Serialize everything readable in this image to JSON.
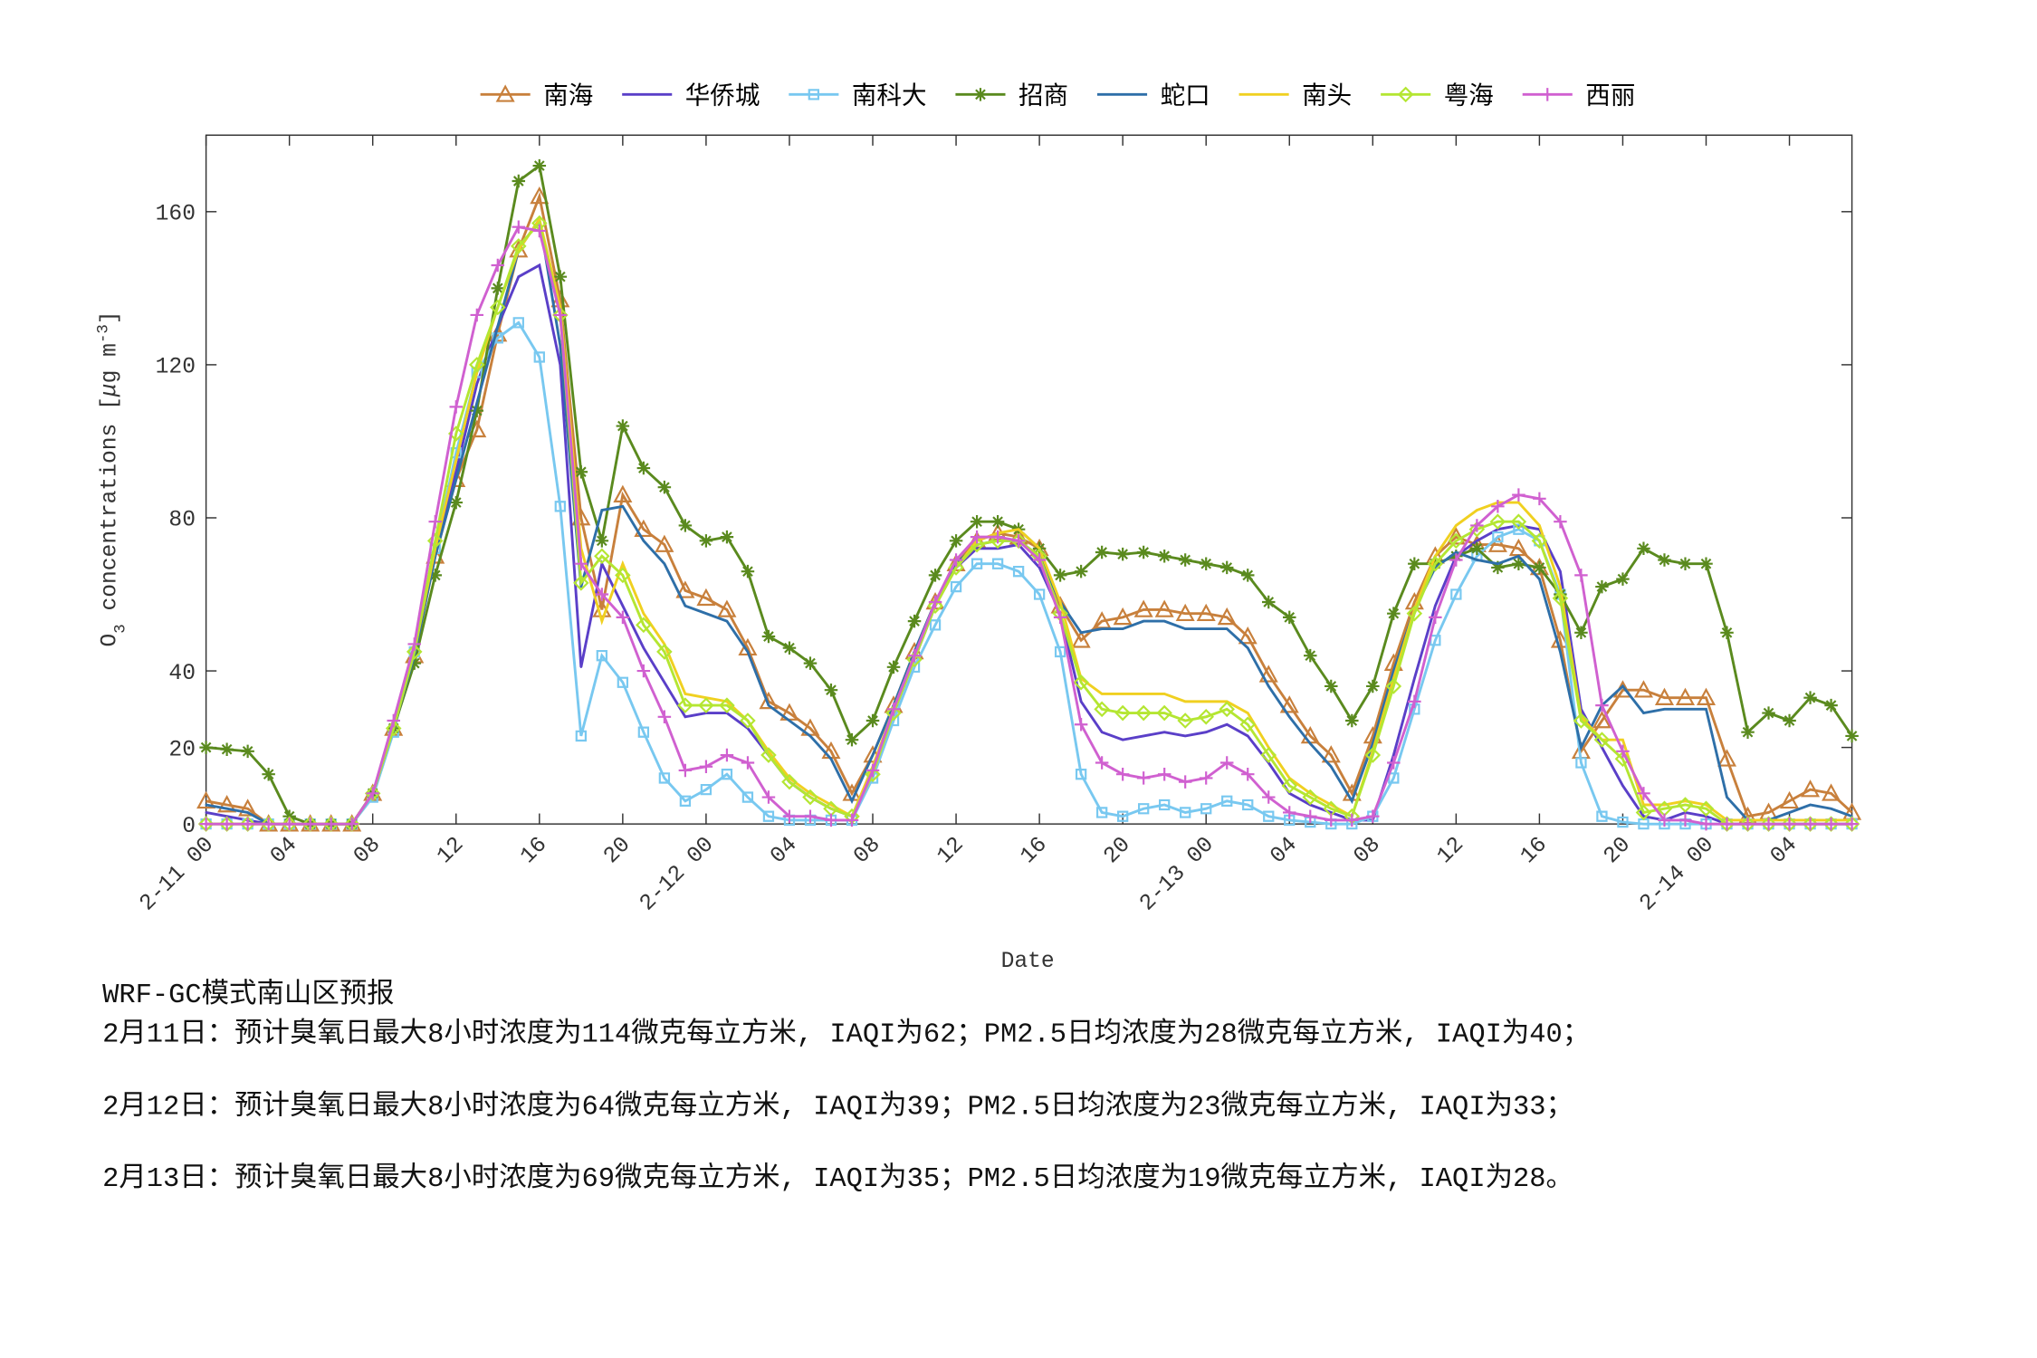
{
  "chart_data": {
    "type": "line",
    "categories": [
      "2-11 00",
      null,
      null,
      null,
      "04",
      null,
      null,
      null,
      "08",
      null,
      null,
      null,
      "12",
      null,
      null,
      null,
      "16",
      null,
      null,
      null,
      "20",
      null,
      null,
      null,
      "2-12 00",
      null,
      null,
      null,
      "04",
      null,
      null,
      null,
      "08",
      null,
      null,
      null,
      "12",
      null,
      null,
      null,
      "16",
      null,
      null,
      null,
      "20",
      null,
      null,
      null,
      "2-13 00",
      null,
      null,
      null,
      "04",
      null,
      null,
      null,
      "08",
      null,
      null,
      null,
      "12",
      null,
      null,
      null,
      "16",
      null,
      null,
      null,
      "20",
      null,
      null,
      null,
      "2-14 00",
      null,
      null,
      null,
      "04",
      null,
      null,
      null
    ],
    "xlabel": "Date",
    "ylabel": [
      "O",
      "3",
      " concentrations [",
      "μ",
      "g m",
      "-3",
      "]"
    ],
    "ylim": [
      0,
      180
    ],
    "yticks": [
      0,
      20,
      40,
      80,
      120,
      160
    ],
    "legend": "top",
    "series": [
      {
        "name": "南海",
        "color": "#c8803c",
        "marker": "triangle",
        "values": [
          6,
          5,
          4,
          0,
          0,
          0,
          0,
          0,
          8,
          25,
          44,
          70,
          90,
          103,
          128,
          150,
          164,
          137,
          80,
          56,
          86,
          77,
          73,
          61,
          59,
          56,
          46,
          32,
          29,
          25,
          19,
          8,
          18,
          31,
          45,
          58,
          68,
          74,
          76,
          75,
          72,
          57,
          48,
          53,
          54,
          56,
          56,
          55,
          55,
          54,
          49,
          39,
          31,
          23,
          18,
          8,
          23,
          42,
          58,
          70,
          75,
          73,
          73,
          72,
          67,
          48,
          19,
          27,
          35,
          35,
          33,
          33,
          33,
          17,
          2,
          3,
          6,
          9,
          8,
          3
        ]
      },
      {
        "name": "华侨城",
        "color": "#5a3fc8",
        "marker": "none",
        "values": [
          3,
          2,
          1,
          0,
          0,
          0,
          0,
          0,
          8,
          25,
          45,
          70,
          92,
          115,
          130,
          143,
          146,
          120,
          41,
          68,
          57,
          46,
          37,
          28,
          29,
          29,
          25,
          18,
          11,
          7,
          4,
          2,
          13,
          29,
          43,
          57,
          67,
          72,
          72,
          73,
          67,
          55,
          32,
          24,
          22,
          23,
          24,
          23,
          24,
          26,
          23,
          16,
          8,
          5,
          3,
          1,
          1,
          18,
          38,
          57,
          70,
          74,
          77,
          78,
          77,
          66,
          30,
          20,
          10,
          2,
          1,
          3,
          2,
          0,
          0,
          0,
          0,
          0,
          0,
          0
        ]
      },
      {
        "name": "南科大",
        "color": "#78c8f0",
        "marker": "square",
        "values": [
          0,
          0,
          0,
          0,
          0,
          0,
          0,
          0,
          7,
          24,
          45,
          72,
          97,
          118,
          127,
          131,
          122,
          83,
          23,
          44,
          37,
          24,
          12,
          6,
          9,
          13,
          7,
          2,
          1,
          1,
          1,
          1,
          12,
          27,
          41,
          52,
          62,
          68,
          68,
          66,
          60,
          45,
          13,
          3,
          2,
          4,
          5,
          3,
          4,
          6,
          5,
          2,
          1,
          0.5,
          0,
          0,
          2,
          12,
          30,
          48,
          60,
          70,
          75,
          77,
          74,
          60,
          16,
          2,
          0.5,
          0,
          0,
          0,
          0,
          0,
          0,
          0,
          0,
          0,
          0,
          0
        ]
      },
      {
        "name": "招商",
        "color": "#5a8a1e",
        "marker": "star",
        "values": [
          20,
          19.5,
          19,
          13,
          2,
          0,
          0,
          0,
          8,
          25,
          42,
          65,
          84,
          108,
          140,
          168,
          172,
          143,
          92,
          74,
          104,
          93,
          88,
          78,
          74,
          75,
          66,
          49,
          46,
          42,
          35,
          22,
          27,
          41,
          53,
          65,
          74,
          79,
          79,
          77,
          72,
          65,
          66,
          71,
          70.5,
          71,
          70,
          69,
          68,
          67,
          65,
          58,
          54,
          44,
          36,
          27,
          36,
          55,
          68,
          68,
          70,
          72,
          67,
          68,
          67,
          60,
          50,
          62,
          64,
          72,
          69,
          68,
          68,
          50,
          24,
          29,
          27,
          33,
          31,
          23
        ]
      },
      {
        "name": "蛇口",
        "color": "#2e6fa8",
        "marker": "none",
        "values": [
          5,
          4,
          3,
          0,
          0,
          0,
          0,
          0,
          8,
          25,
          44,
          70,
          90,
          110,
          130,
          150,
          158,
          125,
          62,
          82,
          83,
          74,
          68,
          57,
          55,
          53,
          45,
          31,
          27,
          23,
          17,
          6,
          18,
          31,
          45,
          58,
          68,
          73,
          74,
          74,
          70,
          58,
          50,
          51,
          51,
          53,
          53,
          51,
          51,
          51,
          46,
          36,
          28,
          21,
          15,
          6,
          21,
          40,
          56,
          67,
          71,
          69,
          68,
          70,
          64,
          45,
          20,
          31,
          36,
          29,
          30,
          30,
          30,
          7,
          1,
          1,
          3,
          5,
          4,
          2
        ]
      },
      {
        "name": "南头",
        "color": "#f0d020",
        "marker": "none",
        "values": [
          0,
          0,
          0,
          0,
          0,
          0,
          0,
          0,
          8,
          25,
          45,
          72,
          95,
          118,
          135,
          150,
          158,
          135,
          72,
          53,
          68,
          55,
          47,
          34,
          33,
          32,
          27,
          19,
          12,
          8,
          5,
          2,
          15,
          30,
          44,
          57,
          67,
          74,
          76,
          77,
          72,
          58,
          38,
          34,
          34,
          34,
          34,
          32,
          32,
          32,
          29,
          20,
          12,
          8,
          5,
          2,
          19,
          38,
          56,
          70,
          78,
          82,
          84,
          84,
          78,
          62,
          28,
          22,
          22,
          5,
          5,
          6,
          5,
          1,
          1,
          1,
          1,
          1,
          1,
          1
        ]
      },
      {
        "name": "粤海",
        "color": "#b4e632",
        "marker": "diamond",
        "values": [
          0,
          0,
          0,
          0,
          0,
          0,
          0,
          0,
          8,
          25,
          45,
          74,
          102,
          120,
          135,
          151,
          157,
          133,
          63,
          70,
          65,
          52,
          45,
          31,
          31,
          31,
          27,
          18,
          11,
          7,
          4,
          2,
          13,
          29,
          43,
          57,
          67,
          73,
          74,
          74,
          70,
          55,
          37,
          30,
          29,
          29,
          29,
          27,
          28,
          30,
          26,
          18,
          10,
          7,
          4,
          2,
          18,
          36,
          55,
          68,
          74,
          77,
          79,
          79,
          74,
          59,
          27,
          22,
          17,
          3,
          4,
          5,
          4,
          0,
          0,
          0,
          0,
          0,
          0,
          0
        ]
      },
      {
        "name": "西丽",
        "color": "#d060d0",
        "marker": "plus",
        "values": [
          0,
          0,
          0,
          0,
          0,
          0,
          0,
          0,
          8,
          27,
          47,
          79,
          109,
          133,
          146,
          156,
          155,
          133,
          68,
          60,
          54,
          40,
          28,
          14,
          15,
          18,
          16,
          7,
          2,
          2,
          1,
          1,
          14,
          30,
          44,
          58,
          69,
          75,
          75,
          74,
          69,
          54,
          26,
          16,
          13,
          12,
          13,
          11,
          12,
          16,
          13,
          7,
          3,
          2,
          1,
          1,
          2,
          16,
          32,
          54,
          69,
          78,
          83,
          86,
          85,
          79,
          65,
          31,
          19,
          8,
          1,
          1,
          0,
          0,
          0,
          0,
          0,
          0,
          0,
          0
        ]
      }
    ]
  },
  "notes": {
    "title": "WRF-GC模式南山区预报",
    "lines": [
      "2月11日：预计臭氧日最大8小时浓度为114微克每立方米, IAQI为62；PM2.5日均浓度为28微克每立方米, IAQI为40；",
      "2月12日：预计臭氧日最大8小时浓度为64微克每立方米, IAQI为39；PM2.5日均浓度为23微克每立方米, IAQI为33；",
      "2月13日：预计臭氧日最大8小时浓度为69微克每立方米, IAQI为35；PM2.5日均浓度为19微克每立方米, IAQI为28。"
    ]
  }
}
